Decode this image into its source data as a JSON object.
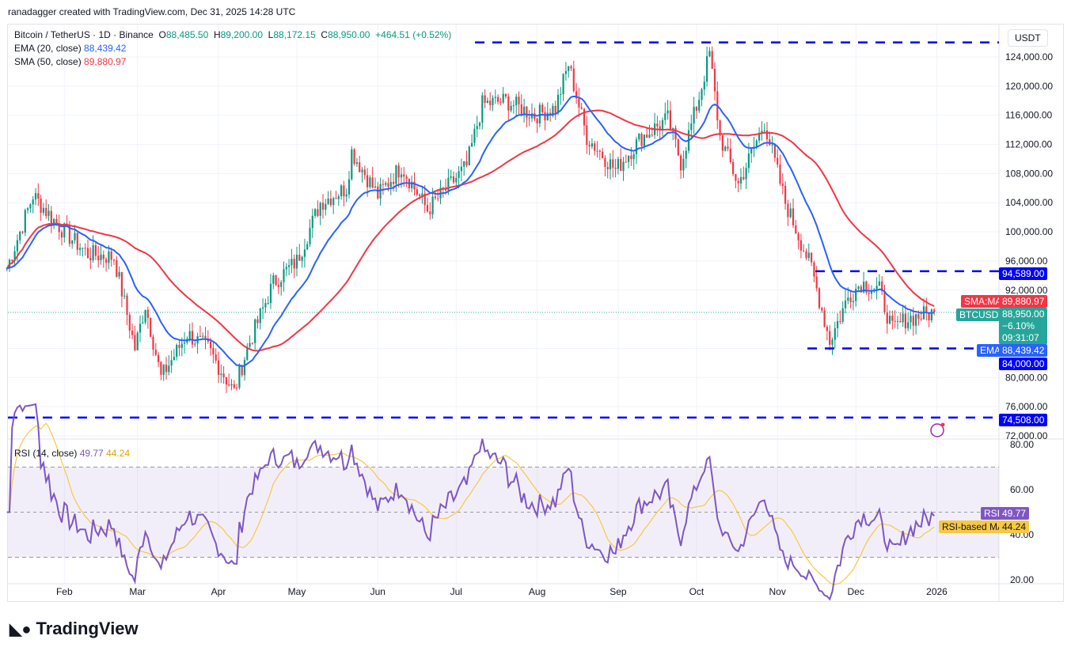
{
  "credit": "ranadagger created with TradingView.com, Dec 31, 2025 14:28 UTC",
  "legend": {
    "symbol": "Bitcoin / TetherUS · 1D · Binance",
    "o_label": "O",
    "o": "88,485.50",
    "h_label": "H",
    "h": "89,200.00",
    "l_label": "L",
    "l": "88,172.15",
    "c_label": "C",
    "c": "88,950.00",
    "change": "+464.51 (+0.52%)",
    "ema_label": "EMA (20, close)",
    "ema": "88,439.42",
    "sma_label": "SMA (50, close)",
    "sma": "89,880.97"
  },
  "rsi_legend": {
    "label": "RSI (14, close)",
    "rsi": "49.77",
    "ma": "44.24"
  },
  "currency": "USDT",
  "colors": {
    "up": "#089981",
    "down": "#f23645",
    "ema": "#2962ff",
    "sma": "#f23645",
    "rsi": "#7e57c2",
    "rsi_ma": "#f7c843",
    "level": "#0000ff"
  },
  "chart_data": {
    "type": "candlestick",
    "price_ticks": [
      "124,000.00",
      "120,000.00",
      "116,000.00",
      "112,000.00",
      "108,000.00",
      "104,000.00",
      "100,000.00",
      "96,000.00",
      "92,000.00",
      "80,000.00",
      "76,000.00",
      "72,000.00"
    ],
    "ylim": [
      72000,
      124000
    ],
    "time_ticks": [
      "Feb",
      "Mar",
      "Apr",
      "May",
      "Jun",
      "Jul",
      "Aug",
      "Sep",
      "Oct",
      "Nov",
      "Dec",
      "2026"
    ],
    "close_series": [
      [
        "2025-01-10",
        95000
      ],
      [
        "2025-01-20",
        105000
      ],
      [
        "2025-01-27",
        102000
      ],
      [
        "2025-02-01",
        100000
      ],
      [
        "2025-02-10",
        97000
      ],
      [
        "2025-02-20",
        96500
      ],
      [
        "2025-02-28",
        84000
      ],
      [
        "2025-03-04",
        90000
      ],
      [
        "2025-03-10",
        80000
      ],
      [
        "2025-03-20",
        86000
      ],
      [
        "2025-03-28",
        84000
      ],
      [
        "2025-04-07",
        78000
      ],
      [
        "2025-04-12",
        84000
      ],
      [
        "2025-04-22",
        93000
      ],
      [
        "2025-05-01",
        96000
      ],
      [
        "2025-05-10",
        104000
      ],
      [
        "2025-05-20",
        106000
      ],
      [
        "2025-05-22",
        111000
      ],
      [
        "2025-06-01",
        105000
      ],
      [
        "2025-06-10",
        109000
      ],
      [
        "2025-06-20",
        103000
      ],
      [
        "2025-06-30",
        107000
      ],
      [
        "2025-07-05",
        109000
      ],
      [
        "2025-07-11",
        117500
      ],
      [
        "2025-07-20",
        118000
      ],
      [
        "2025-07-31",
        116000
      ],
      [
        "2025-08-08",
        117000
      ],
      [
        "2025-08-13",
        123000
      ],
      [
        "2025-08-20",
        113000
      ],
      [
        "2025-08-31",
        108500
      ],
      [
        "2025-09-10",
        113000
      ],
      [
        "2025-09-20",
        115500
      ],
      [
        "2025-09-25",
        109500
      ],
      [
        "2025-10-02",
        118500
      ],
      [
        "2025-10-06",
        124500
      ],
      [
        "2025-10-10",
        113000
      ],
      [
        "2025-10-17",
        106500
      ],
      [
        "2025-10-27",
        115000
      ],
      [
        "2025-11-04",
        104000
      ],
      [
        "2025-11-14",
        95000
      ],
      [
        "2025-11-21",
        85000
      ],
      [
        "2025-11-28",
        91000
      ],
      [
        "2025-12-03",
        93000
      ],
      [
        "2025-12-10",
        92000
      ],
      [
        "2025-12-15",
        86500
      ],
      [
        "2025-12-20",
        88000
      ],
      [
        "2025-12-31",
        88950
      ]
    ],
    "levels": [
      {
        "value": 126000
      },
      {
        "value": 94589,
        "label": "94,589.00"
      },
      {
        "value": 84000,
        "label": "84,000.00"
      },
      {
        "value": 74508,
        "label": "74,508.00"
      }
    ],
    "last": {
      "symbol": "BTCUSDT",
      "price": "88,950.00",
      "change": "−6.10%",
      "countdown": "09:31:07"
    },
    "sma_tag": {
      "name": "SMA:MA",
      "value": "89,880.97"
    },
    "ema_tag": {
      "name": "EMA",
      "value": "88,439.42"
    },
    "rsi": {
      "ticks": [
        "80.00",
        "60.00",
        "40.00",
        "20.00"
      ],
      "bands": [
        30,
        70
      ],
      "mid": 50,
      "tag": "RSI",
      "value": "49.77",
      "ma_tag": "RSI-based MA",
      "ma_value": "44.24"
    }
  },
  "logo": "TradingView"
}
